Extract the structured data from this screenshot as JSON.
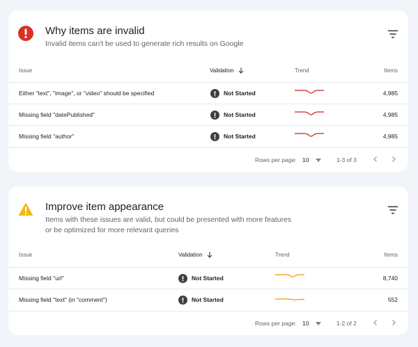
{
  "colors": {
    "error": "#d93025",
    "warning": "#f2b81a",
    "trend_error": "#c5221f",
    "trend_warning": "#f29900",
    "status_icon": "#3c4043"
  },
  "invalid_card": {
    "icon": "error-icon",
    "title": "Why items are invalid",
    "subtitle": "Invalid items can't be used to generate rich results on Google",
    "columns": {
      "issue": "Issue",
      "validation": "Validation",
      "trend": "Trend",
      "items": "Items"
    },
    "rows": [
      {
        "issue": "Either \"text\", \"image\", or \"video\" should be specified",
        "validation": "Not Started",
        "items": "4,985"
      },
      {
        "issue": "Missing field \"datePublished\"",
        "validation": "Not Started",
        "items": "4,985"
      },
      {
        "issue": "Missing field \"author\"",
        "validation": "Not Started",
        "items": "4,985"
      }
    ],
    "footer": {
      "rows_per_page_label": "Rows per page:",
      "rows_per_page": "10",
      "range": "1-3 of 3"
    }
  },
  "appearance_card": {
    "icon": "warning-icon",
    "title": "Improve item appearance",
    "subtitle": "Items with these issues are valid, but could be presented with more features or be optimized for more relevant queries",
    "columns": {
      "issue": "Issue",
      "validation": "Validation",
      "trend": "Trend",
      "items": "Items"
    },
    "rows": [
      {
        "issue": "Missing field \"url\"",
        "validation": "Not Started",
        "items": "8,740"
      },
      {
        "issue": "Missing field \"text\" (in \"comment\")",
        "validation": "Not Started",
        "items": "552"
      }
    ],
    "footer": {
      "rows_per_page_label": "Rows per page:",
      "rows_per_page": "10",
      "range": "1-2 of 2"
    }
  }
}
